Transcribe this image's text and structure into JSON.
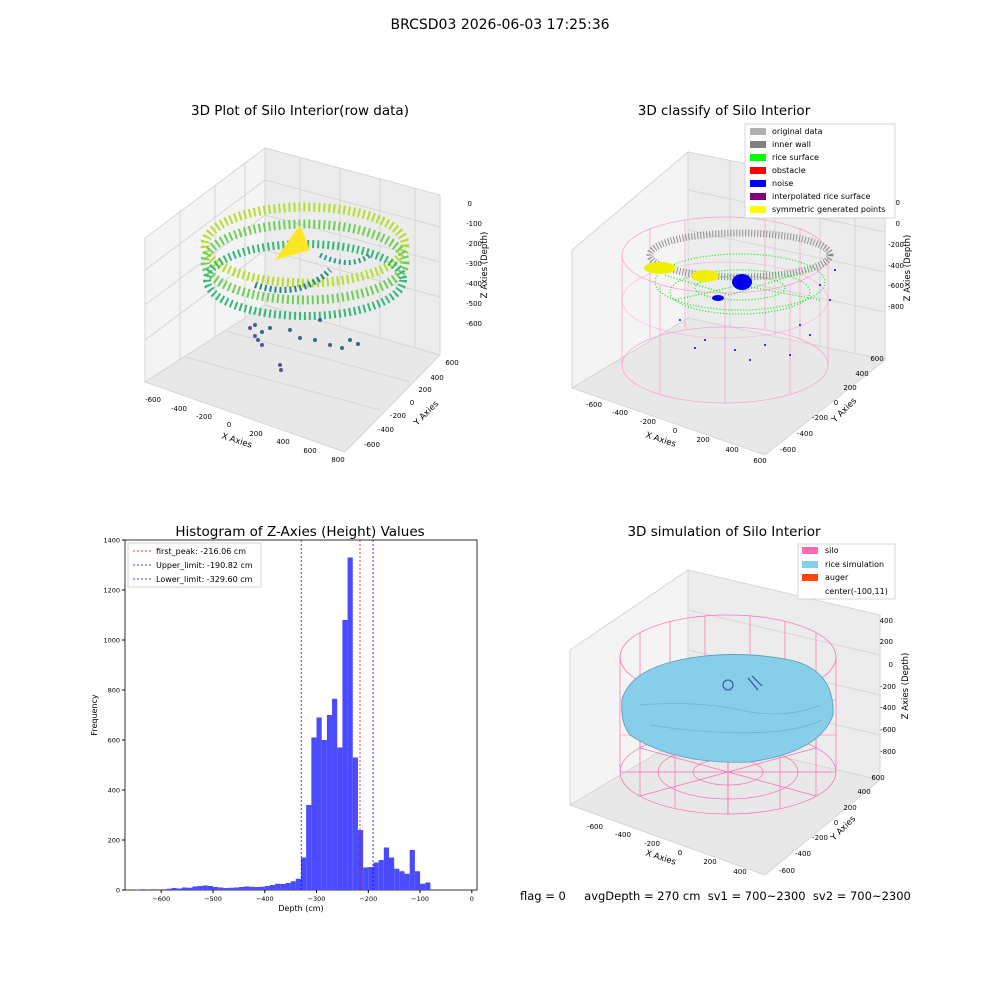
{
  "suptitle": "BRCSD03 2026-06-03 17:25:36",
  "panel_raw": {
    "title": "3D Plot of Silo Interior(row data)",
    "x_label": "X Axies",
    "y_label": "Y Axies",
    "z_label": "Z Axies (Depth)",
    "x_ticks": [
      "-600",
      "-400",
      "-200",
      "0",
      "200",
      "400",
      "600",
      "800"
    ],
    "y_ticks": [
      "600",
      "400",
      "200",
      "0",
      "-200",
      "-400",
      "-600"
    ],
    "z_ticks": [
      "0",
      "-100",
      "-200",
      "-300",
      "-400",
      "-500",
      "-600"
    ]
  },
  "panel_classify": {
    "title": "3D classify of Silo Interior",
    "x_label": "X Axies",
    "y_label": "Y Axies",
    "z_label": "Z Axies (Depth)",
    "x_ticks": [
      "-600",
      "-400",
      "-200",
      "0",
      "200",
      "400",
      "600"
    ],
    "y_ticks": [
      "600",
      "400",
      "200",
      "0",
      "-200",
      "-400",
      "-600"
    ],
    "z_ticks": [
      "200",
      "0",
      "-200",
      "-400",
      "-600",
      "-800"
    ],
    "legend": [
      {
        "label": "original data",
        "color": "#b0b0b0"
      },
      {
        "label": "inner wall",
        "color": "#808080"
      },
      {
        "label": "rice surface",
        "color": "#00ff00"
      },
      {
        "label": "obstacle",
        "color": "#ff0000"
      },
      {
        "label": "noise",
        "color": "#0000ff"
      },
      {
        "label": "interpolated rice surface",
        "color": "#800080"
      },
      {
        "label": "symmetric generated points",
        "color": "#ffff00"
      }
    ]
  },
  "panel_sim": {
    "title": "3D simulation of Silo Interior",
    "x_label": "X Axies",
    "y_label": "Y Axies",
    "z_label": "Z Axies (Depth)",
    "x_ticks": [
      "-600",
      "-400",
      "-200",
      "0",
      "200",
      "400"
    ],
    "y_ticks": [
      "600",
      "400",
      "200",
      "0",
      "-200",
      "-400",
      "-600"
    ],
    "z_ticks": [
      "400",
      "200",
      "0",
      "-200",
      "-400",
      "-600",
      "-800"
    ],
    "legend": [
      {
        "label": "silo",
        "color": "#ff69b4"
      },
      {
        "label": "rice simulation",
        "color": "#87ceeb"
      },
      {
        "label": "auger",
        "color": "#ff4500"
      },
      {
        "label": "center(-100,11)",
        "color": ""
      }
    ]
  },
  "footer": {
    "flag": "flag = 0",
    "summary": "avgDepth = 270 cm  sv1 = 700~2300  sv2 = 700~2300"
  },
  "colors": {
    "hist_bar": "#4a4aff",
    "first_peak_line": "#ff0000",
    "limit_line": "#0000ff",
    "silo_mesh": "#ff69b4",
    "rice_surface": "#87ceeb"
  },
  "chart_data": [
    {
      "type": "scatter",
      "title": "3D Plot of Silo Interior(row data)",
      "xlabel": "X Axies",
      "ylabel": "Y Axies",
      "zlabel": "Z Axies (Depth)",
      "xlim": [
        -600,
        800
      ],
      "ylim": [
        -600,
        600
      ],
      "zlim": [
        -650,
        0
      ],
      "colormap": "viridis"
    },
    {
      "type": "scatter",
      "title": "3D classify of Silo Interior",
      "xlabel": "X Axies",
      "ylabel": "Y Axies",
      "zlabel": "Z Axies (Depth)",
      "xlim": [
        -600,
        600
      ],
      "ylim": [
        -600,
        600
      ],
      "zlim": [
        -900,
        200
      ],
      "legend_position": "top-right",
      "series": [
        {
          "name": "original data"
        },
        {
          "name": "inner wall"
        },
        {
          "name": "rice surface"
        },
        {
          "name": "obstacle"
        },
        {
          "name": "noise"
        },
        {
          "name": "interpolated rice surface"
        },
        {
          "name": "symmetric generated points"
        }
      ]
    },
    {
      "type": "bar",
      "title": "Histogram of Z-Axies (Height) Values",
      "xlabel": "Depth (cm)",
      "ylabel": "Frequency",
      "xlim": [
        -670,
        10
      ],
      "ylim": [
        0,
        1400
      ],
      "x_ticks": [
        -600,
        -500,
        -400,
        -300,
        -200,
        -100,
        0
      ],
      "y_ticks": [
        0,
        200,
        400,
        600,
        800,
        1000,
        1200,
        1400
      ],
      "bin_width": 10,
      "bins": [
        [
          -650,
          2
        ],
        [
          -640,
          3
        ],
        [
          -620,
          3
        ],
        [
          -600,
          3
        ],
        [
          -590,
          5
        ],
        [
          -580,
          8
        ],
        [
          -570,
          6
        ],
        [
          -560,
          10
        ],
        [
          -550,
          9
        ],
        [
          -540,
          14
        ],
        [
          -530,
          16
        ],
        [
          -520,
          18
        ],
        [
          -510,
          16
        ],
        [
          -500,
          12
        ],
        [
          -490,
          10
        ],
        [
          -480,
          8
        ],
        [
          -470,
          9
        ],
        [
          -460,
          10
        ],
        [
          -450,
          12
        ],
        [
          -440,
          14
        ],
        [
          -430,
          13
        ],
        [
          -420,
          12
        ],
        [
          -410,
          13
        ],
        [
          -400,
          16
        ],
        [
          -390,
          20
        ],
        [
          -380,
          25
        ],
        [
          -370,
          24
        ],
        [
          -360,
          28
        ],
        [
          -350,
          35
        ],
        [
          -340,
          45
        ],
        [
          -330,
          130
        ],
        [
          -320,
          340
        ],
        [
          -310,
          610
        ],
        [
          -300,
          690
        ],
        [
          -290,
          600
        ],
        [
          -280,
          700
        ],
        [
          -270,
          765
        ],
        [
          -260,
          570
        ],
        [
          -250,
          1080
        ],
        [
          -240,
          1330
        ],
        [
          -230,
          530
        ],
        [
          -220,
          240
        ],
        [
          -210,
          90
        ],
        [
          -200,
          92
        ],
        [
          -190,
          110
        ],
        [
          -180,
          120
        ],
        [
          -170,
          170
        ],
        [
          -160,
          130
        ],
        [
          -150,
          85
        ],
        [
          -140,
          75
        ],
        [
          -130,
          65
        ],
        [
          -120,
          160
        ],
        [
          -110,
          75
        ],
        [
          -100,
          25
        ],
        [
          -90,
          30
        ]
      ],
      "vlines": [
        {
          "label": "first_peak: -216.06 cm",
          "x": -216.06,
          "color": "#ff0000"
        },
        {
          "label": "Upper_limit: -190.82 cm",
          "x": -190.82,
          "color": "#0000ff"
        },
        {
          "label": "Lower_limit: -329.60 cm",
          "x": -329.6,
          "color": "#0000ff"
        }
      ],
      "legend_position": "top-left"
    },
    {
      "type": "area",
      "title": "3D simulation of Silo Interior",
      "xlabel": "X Axies",
      "ylabel": "Y Axies",
      "zlabel": "Z Axies (Depth)",
      "xlim": [
        -600,
        450
      ],
      "ylim": [
        -600,
        600
      ],
      "zlim": [
        -900,
        450
      ],
      "legend_position": "top-right",
      "series": [
        {
          "name": "silo"
        },
        {
          "name": "rice simulation"
        },
        {
          "name": "auger"
        },
        {
          "name": "center(-100,11)"
        }
      ]
    }
  ]
}
